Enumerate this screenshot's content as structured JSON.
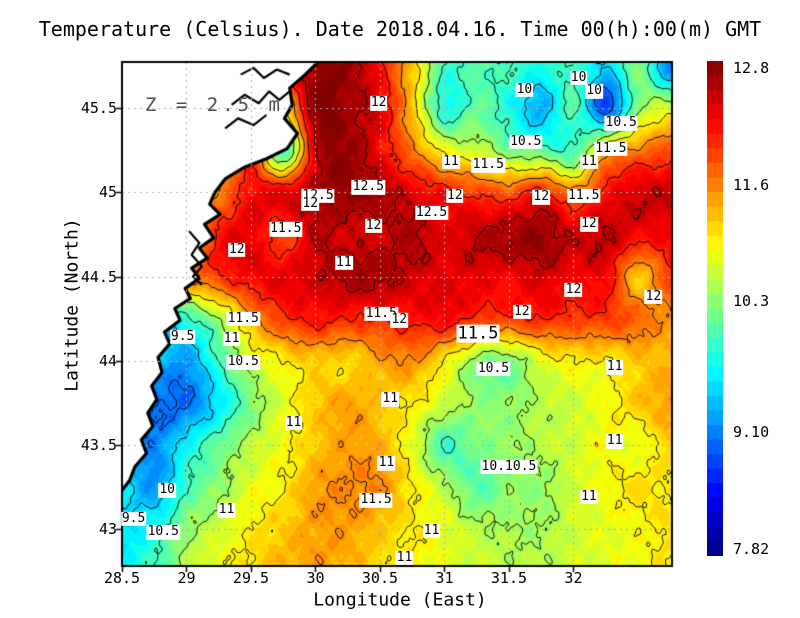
{
  "title": "Temperature (Celsius). Date 2018.04.16. Time 00(h):00(m) GMT",
  "depth_annotation": "Z = 2.5 m",
  "axes": {
    "x_label": "Longitude (East)",
    "y_label": "Latitude (North)",
    "x_ticks": [
      {
        "v": 28.5,
        "label": "28.5"
      },
      {
        "v": 29.0,
        "label": "29"
      },
      {
        "v": 29.5,
        "label": "29.5"
      },
      {
        "v": 30.0,
        "label": "30"
      },
      {
        "v": 30.5,
        "label": "30.5"
      },
      {
        "v": 31.0,
        "label": "31"
      },
      {
        "v": 31.5,
        "label": "31.5"
      },
      {
        "v": 32.0,
        "label": "32"
      }
    ],
    "y_ticks": [
      {
        "v": 43.0,
        "label": "43"
      },
      {
        "v": 43.5,
        "label": "43.5"
      },
      {
        "v": 44.0,
        "label": "44"
      },
      {
        "v": 44.5,
        "label": "44.5"
      },
      {
        "v": 45.0,
        "label": "45"
      },
      {
        "v": 45.5,
        "label": "45.5"
      }
    ]
  },
  "colorbar": {
    "min": 7.82,
    "max": 12.8,
    "segments": 34,
    "ticks": [
      {
        "v": 12.8,
        "seg": 0,
        "label": "12.8"
      },
      {
        "v": 11.6,
        "seg": 8,
        "label": "11.6"
      },
      {
        "v": 10.3,
        "seg": 16,
        "label": "10.3"
      },
      {
        "v": 9.1,
        "seg": 25,
        "label": "9.10"
      },
      {
        "v": 7.82,
        "seg": 33,
        "label": "7.82"
      }
    ]
  },
  "style_colors": {
    "jet_anchors": [
      "#00007f",
      "#0000ff",
      "#00ffff",
      "#ffff00",
      "#ff0000",
      "#7f0000"
    ],
    "land": "#ffffff",
    "coastline": "#000000",
    "contour_line": "#000000",
    "gridline": "#b0b0b0",
    "frame": "#000000",
    "annotation_gray": "#4d4d4d"
  },
  "chart_data": {
    "type": "heatmap",
    "title": "Temperature (Celsius). Date 2018.04.16. Time 00(h):00(m) GMT",
    "xlabel": "Longitude (East)",
    "ylabel": "Latitude (North)",
    "units": "Celsius",
    "depth_m": 2.5,
    "x_range": [
      28.5,
      32.764
    ],
    "y_range": [
      42.78,
      45.775
    ],
    "value_range": [
      7.82,
      12.8
    ],
    "grid_on": true,
    "legend_position": "right-colorbar",
    "lon": [
      28.5,
      28.75,
      29,
      29.25,
      29.5,
      29.75,
      30,
      30.25,
      30.5,
      30.75,
      31,
      31.25,
      31.5,
      31.75,
      32,
      32.25,
      32.5,
      32.75
    ],
    "lat": [
      45.75,
      45.5,
      45.25,
      45,
      44.75,
      44.5,
      44.25,
      44,
      43.75,
      43.5,
      43.25,
      43,
      42.75
    ],
    "values": [
      [
        11.5,
        11.5,
        11.5,
        11.8,
        12.0,
        12.2,
        12.7,
        12.7,
        12.1,
        11.2,
        10.0,
        10.1,
        10.0,
        9.8,
        10.0,
        9.5,
        10.3,
        9.0
      ],
      [
        11.5,
        11.5,
        11.5,
        11.6,
        11.5,
        11.0,
        12.8,
        12.6,
        12.3,
        11.2,
        9.8,
        10.2,
        9.8,
        9.3,
        10.1,
        8.8,
        10.4,
        10.8
      ],
      [
        11.5,
        11.5,
        11.5,
        11.5,
        11.8,
        10.0,
        12.4,
        12.7,
        12.2,
        11.6,
        10.9,
        10.7,
        10.3,
        10.2,
        10.0,
        11.3,
        11.6,
        11.8
      ],
      [
        11.5,
        11.5,
        11.5,
        11.5,
        12.2,
        12.3,
        12.6,
        12.7,
        12.6,
        12.3,
        12.1,
        11.9,
        11.8,
        12.1,
        11.6,
        12.1,
        12.4,
        12.4
      ],
      [
        11.5,
        11.3,
        11.0,
        12.1,
        12.3,
        11.8,
        12.5,
        12.4,
        12.4,
        12.6,
        12.3,
        12.5,
        12.6,
        12.7,
        12.4,
        12.5,
        12.2,
        12.2
      ],
      [
        11.0,
        11.2,
        11.5,
        11.9,
        12.2,
        12.3,
        12.4,
        12.6,
        12.6,
        12.4,
        12.3,
        12.3,
        12.2,
        12.4,
        12.2,
        12.2,
        11.2,
        11.9
      ],
      [
        9.6,
        9.6,
        9.9,
        10.5,
        11.4,
        11.9,
        12.1,
        12.0,
        12.0,
        12.1,
        12.2,
        11.9,
        11.9,
        12.0,
        11.9,
        11.9,
        11.7,
        11.4
      ],
      [
        9.3,
        9.4,
        9.2,
        10.0,
        10.7,
        11.0,
        11.2,
        11.1,
        11.4,
        11.5,
        11.0,
        10.4,
        10.3,
        10.8,
        11.0,
        11.0,
        11.2,
        11.3
      ],
      [
        9.2,
        9.0,
        9.0,
        9.6,
        10.3,
        10.8,
        11.2,
        11.4,
        11.2,
        11.0,
        10.7,
        10.4,
        10.4,
        10.6,
        10.7,
        10.9,
        11.2,
        11.4
      ],
      [
        9.3,
        9.1,
        9.7,
        10.2,
        10.6,
        10.9,
        11.2,
        11.4,
        11.3,
        10.8,
        10.0,
        10.3,
        10.4,
        10.6,
        10.7,
        10.9,
        10.8,
        11.2
      ],
      [
        9.6,
        9.2,
        10.0,
        10.4,
        10.8,
        11.0,
        11.4,
        11.5,
        11.5,
        11.0,
        10.6,
        10.1,
        10.4,
        10.4,
        10.7,
        10.9,
        11.1,
        11.0
      ],
      [
        9.5,
        9.8,
        10.4,
        10.7,
        11.0,
        11.2,
        11.4,
        11.4,
        11.2,
        11.0,
        10.8,
        10.6,
        10.5,
        10.5,
        10.7,
        10.8,
        10.9,
        11.1
      ],
      [
        9.7,
        10.0,
        10.6,
        10.9,
        11.1,
        11.3,
        11.4,
        11.3,
        11.1,
        11.0,
        10.8,
        10.7,
        10.6,
        10.6,
        10.7,
        10.8,
        10.9,
        11.0
      ]
    ],
    "contour_levels": [
      9,
      9.5,
      10,
      10.5,
      11,
      11.5,
      12,
      12.5
    ],
    "contour_labels": [
      {
        "lon": 30.49,
        "lat": 45.53,
        "text": "12"
      },
      {
        "lon": 31.62,
        "lat": 45.61,
        "text": "10"
      },
      {
        "lon": 32.04,
        "lat": 45.68,
        "text": "10"
      },
      {
        "lon": 32.16,
        "lat": 45.6,
        "text": "10"
      },
      {
        "lon": 32.37,
        "lat": 45.41,
        "text": "10.5"
      },
      {
        "lon": 31.63,
        "lat": 45.3,
        "text": "10.5"
      },
      {
        "lon": 32.29,
        "lat": 45.26,
        "text": "11.5"
      },
      {
        "lon": 32.12,
        "lat": 45.18,
        "text": "11"
      },
      {
        "lon": 31.05,
        "lat": 45.18,
        "text": "11"
      },
      {
        "lon": 31.34,
        "lat": 45.16,
        "text": "11.5"
      },
      {
        "lon": 30.41,
        "lat": 45.03,
        "text": "12.5"
      },
      {
        "lon": 30.02,
        "lat": 44.98,
        "text": "12.5"
      },
      {
        "lon": 29.96,
        "lat": 44.93,
        "text": "12"
      },
      {
        "lon": 31.08,
        "lat": 44.98,
        "text": "12"
      },
      {
        "lon": 31.75,
        "lat": 44.97,
        "text": "12"
      },
      {
        "lon": 32.08,
        "lat": 44.98,
        "text": "11.5"
      },
      {
        "lon": 30.9,
        "lat": 44.88,
        "text": "12.5"
      },
      {
        "lon": 32.12,
        "lat": 44.81,
        "text": "12"
      },
      {
        "lon": 30.45,
        "lat": 44.8,
        "text": "12"
      },
      {
        "lon": 29.77,
        "lat": 44.78,
        "text": "11.5"
      },
      {
        "lon": 29.39,
        "lat": 44.66,
        "text": "12"
      },
      {
        "lon": 30.22,
        "lat": 44.58,
        "text": "11"
      },
      {
        "lon": 32.0,
        "lat": 44.42,
        "text": "12"
      },
      {
        "lon": 32.62,
        "lat": 44.38,
        "text": "12"
      },
      {
        "lon": 31.6,
        "lat": 44.29,
        "text": "12"
      },
      {
        "lon": 30.51,
        "lat": 44.28,
        "text": "11.5"
      },
      {
        "lon": 30.65,
        "lat": 44.24,
        "text": "12"
      },
      {
        "lon": 29.44,
        "lat": 44.25,
        "text": "11.5"
      },
      {
        "lon": 31.26,
        "lat": 44.16,
        "text": "11.5",
        "big": true
      },
      {
        "lon": 28.97,
        "lat": 44.14,
        "text": "9.5"
      },
      {
        "lon": 29.35,
        "lat": 44.13,
        "text": "11"
      },
      {
        "lon": 29.44,
        "lat": 43.99,
        "text": "10.5"
      },
      {
        "lon": 31.38,
        "lat": 43.95,
        "text": "10.5"
      },
      {
        "lon": 32.32,
        "lat": 43.96,
        "text": "11"
      },
      {
        "lon": 30.58,
        "lat": 43.77,
        "text": "11"
      },
      {
        "lon": 29.83,
        "lat": 43.63,
        "text": "11"
      },
      {
        "lon": 32.32,
        "lat": 43.52,
        "text": "11"
      },
      {
        "lon": 30.55,
        "lat": 43.39,
        "text": "11"
      },
      {
        "lon": 31.5,
        "lat": 43.37,
        "text": "10.10.5"
      },
      {
        "lon": 28.85,
        "lat": 43.23,
        "text": "10"
      },
      {
        "lon": 32.12,
        "lat": 43.19,
        "text": "11"
      },
      {
        "lon": 30.47,
        "lat": 43.17,
        "text": "11.5"
      },
      {
        "lon": 29.31,
        "lat": 43.11,
        "text": "11"
      },
      {
        "lon": 28.59,
        "lat": 43.06,
        "text": "9.5"
      },
      {
        "lon": 28.82,
        "lat": 42.98,
        "text": "10.5"
      },
      {
        "lon": 30.9,
        "lat": 42.99,
        "text": "11"
      },
      {
        "lon": 30.69,
        "lat": 42.83,
        "text": "11"
      }
    ],
    "coastline": [
      [
        30.02,
        45.775
      ],
      [
        29.92,
        45.7
      ],
      [
        29.8,
        45.62
      ],
      [
        29.82,
        45.52
      ],
      [
        29.76,
        45.44
      ],
      [
        29.86,
        45.35
      ],
      [
        29.78,
        45.26
      ],
      [
        29.62,
        45.2
      ],
      [
        29.45,
        45.15
      ],
      [
        29.3,
        45.08
      ],
      [
        29.22,
        45.0
      ],
      [
        29.18,
        44.93
      ],
      [
        29.26,
        44.87
      ],
      [
        29.14,
        44.81
      ],
      [
        29.21,
        44.73
      ],
      [
        29.1,
        44.67
      ],
      [
        29.16,
        44.61
      ],
      [
        29.04,
        44.55
      ],
      [
        29.1,
        44.49
      ],
      [
        28.99,
        44.43
      ],
      [
        29.03,
        44.37
      ],
      [
        28.91,
        44.31
      ],
      [
        28.95,
        44.24
      ],
      [
        28.83,
        44.17
      ],
      [
        28.87,
        44.1
      ],
      [
        28.78,
        44.02
      ],
      [
        28.81,
        43.93
      ],
      [
        28.73,
        43.85
      ],
      [
        28.77,
        43.77
      ],
      [
        28.7,
        43.69
      ],
      [
        28.74,
        43.61
      ],
      [
        28.65,
        43.53
      ],
      [
        28.69,
        43.45
      ],
      [
        28.6,
        43.37
      ],
      [
        28.56,
        43.29
      ],
      [
        28.5,
        43.23
      ]
    ],
    "coast_details": [
      [
        [
          29.42,
          45.7
        ],
        [
          29.52,
          45.74
        ],
        [
          29.6,
          45.68
        ],
        [
          29.7,
          45.73
        ],
        [
          29.8,
          45.7
        ]
      ],
      [
        [
          29.35,
          45.52
        ],
        [
          29.45,
          45.58
        ],
        [
          29.56,
          45.53
        ],
        [
          29.64,
          45.6
        ],
        [
          29.72,
          45.55
        ],
        [
          29.8,
          45.6
        ]
      ],
      [
        [
          29.3,
          45.38
        ],
        [
          29.4,
          45.44
        ],
        [
          29.52,
          45.4
        ],
        [
          29.62,
          45.46
        ]
      ],
      [
        [
          29.02,
          44.77
        ],
        [
          29.1,
          44.7
        ],
        [
          29.04,
          44.63
        ],
        [
          29.12,
          44.56
        ],
        [
          29.05,
          44.5
        ],
        [
          29.12,
          44.45
        ]
      ]
    ]
  }
}
